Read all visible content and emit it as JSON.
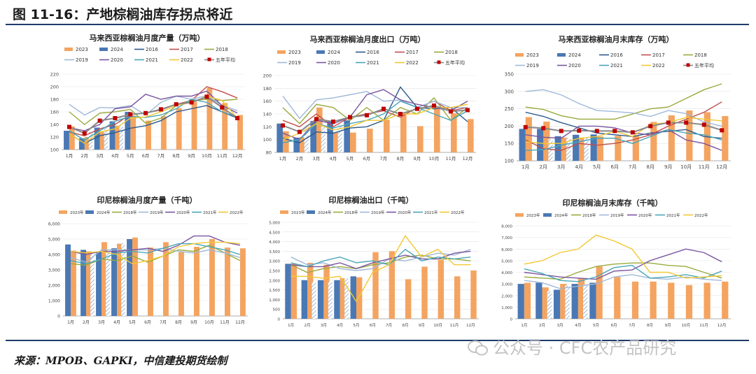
{
  "figure": {
    "title": "图 11-16：产地棕榈油库存拐点将近",
    "source": "来源：MPOB、GAPKI，中信建投期货绘制",
    "watermark": "公众号 · CFC农产品研究"
  },
  "colors": {
    "y2023": "#f4a460",
    "y2024": "#4a78b4",
    "y2016": "#2c5a8c",
    "y2017": "#c0504d",
    "y2018": "#9aaa3c",
    "y2019": "#9fb8d8",
    "y2020": "#7a55a0",
    "y2021": "#4aa6b8",
    "y2022": "#f2c832",
    "avg": "#c00000",
    "rule": "#1f3a6b"
  },
  "chart_data": [
    {
      "type": "bar",
      "title": "马来西亚棕榈油月度产量（万吨）",
      "categories": [
        "1月",
        "2月",
        "3月",
        "4月",
        "5月",
        "6月",
        "7月",
        "8月",
        "9月",
        "10月",
        "11月",
        "12月"
      ],
      "yticks": [
        "100",
        "120",
        "140",
        "160",
        "180",
        "200",
        "220"
      ],
      "ylim": [
        100,
        220
      ],
      "legend": [
        "2023",
        "2024",
        "2016",
        "2017",
        "2018",
        "2019",
        "2020",
        "2021",
        "2022",
        "五年平均"
      ],
      "bar_series": [
        {
          "name": "2023",
          "values": [
            137,
            120,
            128,
            138,
            154,
            146,
            153,
            166,
            176,
            198,
            174,
            155
          ]
        },
        {
          "name": "2024",
          "values": [
            130,
            118,
            135,
            145,
            160,
            null,
            null,
            null,
            null,
            null,
            null,
            null
          ]
        }
      ],
      "line_series": [
        {
          "name": "2016",
          "values": [
            125,
            110,
            122,
            127,
            134,
            138,
            146,
            160,
            165,
            170,
            160,
            150
          ]
        },
        {
          "name": "2017",
          "values": [
            128,
            122,
            133,
            140,
            156,
            158,
            163,
            172,
            178,
            200,
            192,
            182
          ]
        },
        {
          "name": "2018",
          "values": [
            160,
            140,
            158,
            160,
            164,
            142,
            150,
            170,
            178,
            180,
            178,
            180
          ]
        },
        {
          "name": "2019",
          "values": [
            172,
            155,
            167,
            166,
            170,
            155,
            175,
            185,
            180,
            186,
            170,
            162
          ]
        },
        {
          "name": "2020",
          "values": [
            135,
            130,
            140,
            165,
            168,
            188,
            180,
            185,
            185,
            193,
            170,
            158
          ]
        },
        {
          "name": "2021",
          "values": [
            130,
            115,
            130,
            145,
            153,
            151,
            155,
            165,
            180,
            175,
            160,
            152
          ]
        },
        {
          "name": "2022",
          "values": [
            125,
            110,
            128,
            133,
            150,
            152,
            160,
            170,
            175,
            185,
            178,
            150
          ]
        },
        {
          "name": "五年平均",
          "values": [
            136,
            126,
            146,
            150,
            156,
            158,
            164,
            172,
            175,
            184,
            167,
            150
          ]
        }
      ]
    },
    {
      "type": "bar",
      "title": "马来西亚棕榈油月度出口（万吨）",
      "categories": [
        "1月",
        "2月",
        "3月",
        "4月",
        "5月",
        "6月",
        "7月",
        "8月",
        "9月",
        "10月",
        "11月",
        "12月"
      ],
      "yticks": [
        "80",
        "100",
        "120",
        "140",
        "160",
        "180",
        "200"
      ],
      "ylim": [
        80,
        200
      ],
      "legend": [
        "2023",
        "2024",
        "2016",
        "2017",
        "2018",
        "2019",
        "2020",
        "2021",
        "2022",
        "五年平均"
      ],
      "bar_series": [
        {
          "name": "2023",
          "values": [
            113,
            104,
            150,
            111,
            111,
            117,
            131,
            142,
            121,
            148,
            141,
            132
          ]
        },
        {
          "name": "2024",
          "values": [
            125,
            103,
            129,
            128,
            130,
            null,
            null,
            null,
            null,
            null,
            null,
            null
          ]
        }
      ],
      "line_series": [
        {
          "name": "2016",
          "values": [
            102,
            95,
            112,
            110,
            118,
            120,
            130,
            182,
            150,
            148,
            150,
            128
          ]
        },
        {
          "name": "2017",
          "values": [
            130,
            120,
            140,
            120,
            135,
            140,
            145,
            135,
            150,
            160,
            145,
            150
          ]
        },
        {
          "name": "2018",
          "values": [
            150,
            125,
            155,
            150,
            130,
            150,
            130,
            150,
            140,
            165,
            130,
            150
          ]
        },
        {
          "name": "2019",
          "values": [
            168,
            133,
            162,
            165,
            170,
            175,
            160,
            162,
            150,
            160,
            150,
            150
          ]
        },
        {
          "name": "2020",
          "values": [
            110,
            100,
            130,
            125,
            135,
            170,
            178,
            162,
            155,
            150,
            145,
            160
          ]
        },
        {
          "name": "2021",
          "values": [
            95,
            100,
            125,
            118,
            125,
            130,
            140,
            160,
            150,
            140,
            130,
            145
          ]
        },
        {
          "name": "2022",
          "values": [
            100,
            110,
            125,
            115,
            120,
            130,
            130,
            140,
            140,
            150,
            150,
            155
          ]
        },
        {
          "name": "五年平均",
          "values": [
            122,
            112,
            132,
            128,
            135,
            138,
            148,
            140,
            148,
            153,
            144,
            146
          ]
        }
      ]
    },
    {
      "type": "bar",
      "title": "马来西亚棕榈油月末库存（万吨）",
      "categories": [
        "1月",
        "2月",
        "3月",
        "4月",
        "5月",
        "6月",
        "7月",
        "8月",
        "9月",
        "10月",
        "11月",
        "12月"
      ],
      "yticks": [
        "100",
        "150",
        "200",
        "250",
        "300",
        "350"
      ],
      "ylim": [
        100,
        350
      ],
      "legend": [
        "2023",
        "2024",
        "2016",
        "2017",
        "2018",
        "2019",
        "2020",
        "2021",
        "2022",
        "五年平均"
      ],
      "bar_series": [
        {
          "name": "2023",
          "values": [
            226,
            213,
            167,
            167,
            170,
            172,
            173,
            212,
            231,
            245,
            240,
            229
          ]
        },
        {
          "name": "2024",
          "values": [
            192,
            192,
            171,
            175,
            176,
            null,
            null,
            null,
            null,
            null,
            null,
            null
          ]
        }
      ],
      "line_series": [
        {
          "name": "2016",
          "values": [
            240,
            228,
            210,
            195,
            180,
            175,
            170,
            180,
            185,
            190,
            170,
            165
          ]
        },
        {
          "name": "2017",
          "values": [
            160,
            135,
            130,
            150,
            145,
            150,
            160,
            175,
            200,
            220,
            240,
            270
          ]
        },
        {
          "name": "2018",
          "values": [
            255,
            248,
            230,
            220,
            220,
            220,
            235,
            250,
            255,
            280,
            305,
            322
          ]
        },
        {
          "name": "2019",
          "values": [
            300,
            305,
            290,
            265,
            245,
            242,
            238,
            228,
            245,
            236,
            212,
            200
          ]
        },
        {
          "name": "2020",
          "values": [
            175,
            168,
            165,
            200,
            200,
            195,
            180,
            175,
            190,
            160,
            150,
            130
          ]
        },
        {
          "name": "2021",
          "values": [
            130,
            132,
            145,
            155,
            165,
            165,
            150,
            170,
            190,
            180,
            175,
            160
          ]
        },
        {
          "name": "2022",
          "values": [
            155,
            150,
            150,
            165,
            170,
            185,
            170,
            205,
            210,
            225,
            220,
            215
          ]
        },
        {
          "name": "五年平均",
          "values": [
            197,
            194,
            186,
            187,
            186,
            186,
            182,
            200,
            210,
            210,
            204,
            188
          ]
        }
      ]
    },
    {
      "type": "bar",
      "title": "印尼棕榈油月度产量（千吨）",
      "categories": [
        "1月",
        "2月",
        "3月",
        "4月",
        "5月",
        "6月",
        "7月",
        "8月",
        "9月",
        "10月",
        "11月",
        "12月"
      ],
      "yticks": [
        "0",
        "1,000",
        "2,000",
        "3,000",
        "4,000",
        "5,000",
        "6,000"
      ],
      "ylim": [
        0,
        6000
      ],
      "legend": [
        "2023年",
        "2024年",
        "2018年",
        "2019年",
        "2020年",
        "2021年",
        "2022年"
      ],
      "bar_series": [
        {
          "name": "2023年",
          "values": [
            4250,
            4200,
            4800,
            4700,
            5100,
            4450,
            4800,
            4150,
            4500,
            5000,
            4450,
            4400
          ]
        },
        {
          "name": "2024年",
          "values": [
            4650,
            4300,
            4200,
            4400,
            5000,
            null,
            null,
            null,
            null,
            null,
            null,
            null
          ]
        }
      ],
      "line_series": [
        {
          "name": "2018年",
          "values": [
            3400,
            3300,
            3700,
            3600,
            3900,
            3500,
            3900,
            4300,
            4200,
            4600,
            4100,
            3600
          ]
        },
        {
          "name": "2019年",
          "values": [
            3800,
            3500,
            4300,
            4300,
            4300,
            4300,
            4400,
            4200,
            4100,
            4300,
            4100,
            3800
          ]
        },
        {
          "name": "2020年",
          "values": [
            4200,
            4000,
            4200,
            4200,
            4300,
            4400,
            4200,
            4600,
            5200,
            5200,
            4800,
            4600
          ]
        },
        {
          "name": "2021年",
          "values": [
            3600,
            3400,
            3700,
            4100,
            4200,
            4100,
            4400,
            4700,
            4700,
            4500,
            4300,
            4000
          ]
        },
        {
          "name": "2022年",
          "values": [
            4200,
            4100,
            4200,
            4000,
            3400,
            3600,
            3900,
            4500,
            4700,
            4800,
            4800,
            4700
          ]
        }
      ]
    },
    {
      "type": "bar",
      "title": "印尼棕榈油出口（千吨）",
      "categories": [
        "1月",
        "2月",
        "3月",
        "4月",
        "5月",
        "6月",
        "7月",
        "8月",
        "9月",
        "10月",
        "11月",
        "12月"
      ],
      "yticks": [
        "0",
        "500",
        "1,000",
        "1,500",
        "2,000",
        "2,500",
        "3,000",
        "3,500",
        "4,000",
        "4,500",
        "5,000"
      ],
      "ylim": [
        0,
        5000
      ],
      "legend": [
        "2023年",
        "2024年",
        "2018年",
        "2019年",
        "2020年",
        "2021年",
        "2022年"
      ],
      "bar_series": [
        {
          "name": "2023年",
          "values": [
            2850,
            2900,
            2800,
            2100,
            2150,
            3450,
            3500,
            2050,
            2700,
            3050,
            2200,
            2500
          ]
        },
        {
          "name": "2024年",
          "values": [
            2850,
            2000,
            2000,
            2000,
            2200,
            null,
            null,
            null,
            null,
            null,
            null,
            null
          ]
        }
      ],
      "line_series": [
        {
          "name": "2018年",
          "values": [
            2800,
            2400,
            2600,
            2700,
            2600,
            2800,
            2900,
            3200,
            3300,
            3100,
            3100,
            3000
          ]
        },
        {
          "name": "2019年",
          "values": [
            3200,
            2800,
            2900,
            2600,
            2500,
            2600,
            3100,
            3000,
            3200,
            3400,
            3300,
            3600
          ]
        },
        {
          "name": "2020年",
          "values": [
            2800,
            2700,
            2700,
            2900,
            2600,
            2900,
            3100,
            3300,
            3100,
            3100,
            3400,
            3500
          ]
        },
        {
          "name": "2021年",
          "values": [
            2900,
            2700,
            3000,
            3200,
            2900,
            3000,
            2800,
            3600,
            3000,
            3200,
            3100,
            3200
          ]
        },
        {
          "name": "2022年",
          "values": [
            2200,
            2200,
            2100,
            2200,
            900,
            2400,
            2800,
            4300,
            3200,
            3600,
            2800,
            2800
          ]
        }
      ]
    },
    {
      "type": "bar",
      "title": "印尼棕榈油月末库存（千吨）",
      "categories": [
        "1月",
        "2月",
        "3月",
        "4月",
        "5月",
        "6月",
        "7月",
        "8月",
        "9月",
        "10月",
        "11月",
        "12月"
      ],
      "yticks": [
        "0",
        "1,000",
        "2,000",
        "3,000",
        "4,000",
        "5,000",
        "6,000",
        "7,000",
        "8,000"
      ],
      "ylim": [
        0,
        8000
      ],
      "legend": [
        "2023年",
        "2024年",
        "2018年",
        "2019年",
        "2020年",
        "2021年",
        "2022年"
      ],
      "bar_series": [
        {
          "name": "2023年",
          "values": [
            3100,
            2700,
            3000,
            3500,
            4500,
            3600,
            3200,
            3200,
            3100,
            2900,
            3100,
            3200
          ]
        },
        {
          "name": "2024年",
          "values": [
            3000,
            3100,
            2500,
            3000,
            3100,
            null,
            null,
            null,
            null,
            null,
            null,
            null
          ]
        }
      ],
      "line_series": [
        {
          "name": "2018年",
          "values": [
            3600,
            3500,
            3400,
            4000,
            4500,
            4700,
            4800,
            4800,
            4600,
            4500,
            4000,
            3500
          ]
        },
        {
          "name": "2019年",
          "values": [
            3300,
            3100,
            2600,
            2800,
            3000,
            3600,
            3800,
            3500,
            3400,
            3600,
            3400,
            3300
          ]
        },
        {
          "name": "2020年",
          "values": [
            4000,
            3800,
            3600,
            3500,
            3400,
            4100,
            4200,
            5000,
            5500,
            6000,
            5700,
            4900
          ]
        },
        {
          "name": "2021年",
          "values": [
            4300,
            3900,
            3300,
            3200,
            3600,
            4400,
            4600,
            3500,
            3600,
            3800,
            3500,
            4100
          ]
        },
        {
          "name": "2022年",
          "values": [
            4700,
            5000,
            5700,
            6000,
            7200,
            6700,
            6000,
            4000,
            4000,
            3500,
            3600,
            3700
          ]
        }
      ]
    }
  ]
}
